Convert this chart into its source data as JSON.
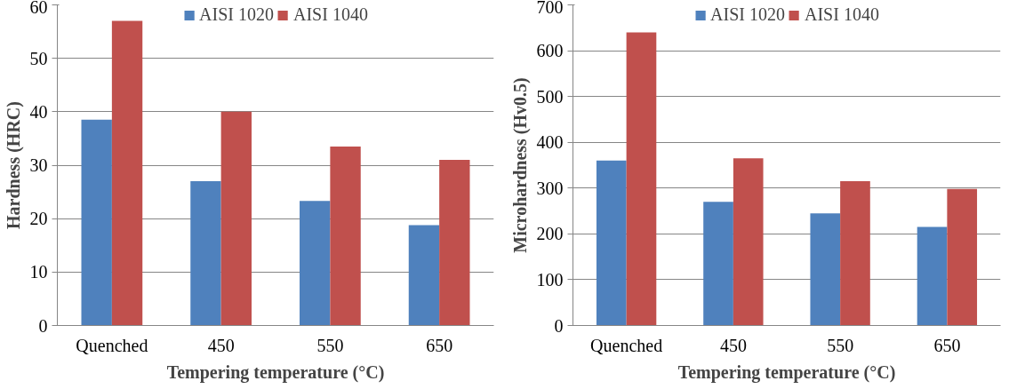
{
  "chart_data": [
    {
      "type": "bar",
      "categories": [
        "Quenched",
        "450",
        "550",
        "650"
      ],
      "xlabel": "Tempering temperature (°C)",
      "ylabel": "Hardness (HRC)",
      "ylim": [
        0,
        60
      ],
      "yticks": [
        0,
        10,
        20,
        30,
        40,
        50,
        60
      ],
      "grid": "y",
      "legend": "top",
      "series": [
        {
          "name": "AISI 1020",
          "color": "#4f81bd",
          "values": [
            38.5,
            27,
            23.3,
            18.8
          ]
        },
        {
          "name": "AISI 1040",
          "color": "#c0504d",
          "values": [
            57,
            40,
            33.5,
            31
          ]
        }
      ]
    },
    {
      "type": "bar",
      "categories": [
        "Quenched",
        "450",
        "550",
        "650"
      ],
      "xlabel": "Tempering temperature (°C)",
      "ylabel": "Microhardness (Hv0.5)",
      "ylim": [
        0,
        700
      ],
      "yticks": [
        0,
        100,
        200,
        300,
        400,
        500,
        600,
        700
      ],
      "grid": "y",
      "legend": "top",
      "series": [
        {
          "name": "AISI 1020",
          "color": "#4f81bd",
          "values": [
            360,
            270,
            245,
            215
          ]
        },
        {
          "name": "AISI 1040",
          "color": "#c0504d",
          "values": [
            640,
            365,
            315,
            298
          ]
        }
      ]
    }
  ]
}
